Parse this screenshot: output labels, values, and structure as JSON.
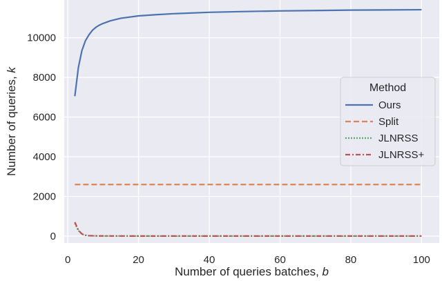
{
  "chart_data": {
    "type": "line",
    "xlabel": "Number of queries batches, b",
    "xlabel_prefix": "Number of queries batches, ",
    "xlabel_var": "b",
    "ylabel": "Number of queries, k",
    "ylabel_prefix": "Number of queries, ",
    "ylabel_var": "k",
    "xlim": [
      -1,
      105
    ],
    "ylim": [
      -350,
      11900
    ],
    "x_ticks": [
      0,
      20,
      40,
      60,
      80,
      100
    ],
    "y_ticks": [
      0,
      2000,
      4000,
      6000,
      8000,
      10000
    ],
    "grid": true,
    "legend": {
      "title": "Method",
      "position": "right"
    },
    "series": [
      {
        "name": "Ours",
        "color": "#4c72b0",
        "dash": "solid",
        "x": [
          2,
          3,
          4,
          5,
          6,
          7,
          8,
          9,
          10,
          12,
          15,
          20,
          25,
          30,
          40,
          50,
          60,
          70,
          80,
          90,
          100
        ],
        "y": [
          7050,
          8500,
          9350,
          9850,
          10150,
          10380,
          10530,
          10640,
          10720,
          10850,
          10980,
          11100,
          11160,
          11210,
          11280,
          11320,
          11350,
          11370,
          11390,
          11400,
          11410
        ]
      },
      {
        "name": "Split",
        "color": "#dd8452",
        "dash": "dashed",
        "x": [
          2,
          100
        ],
        "y": [
          2600,
          2600
        ]
      },
      {
        "name": "JLNRSS",
        "color": "#55a868",
        "dash": "dotted",
        "x": [
          2,
          3,
          4,
          5,
          6,
          8,
          10,
          20,
          40,
          60,
          80,
          100
        ],
        "y": [
          650,
          280,
          100,
          40,
          20,
          10,
          5,
          3,
          2,
          2,
          2,
          2
        ]
      },
      {
        "name": "JLNRSS+",
        "color": "#c44e52",
        "dash": "dashdot",
        "x": [
          2,
          3,
          4,
          5,
          6,
          8,
          10,
          20,
          40,
          60,
          80,
          100
        ],
        "y": [
          700,
          300,
          110,
          45,
          22,
          11,
          6,
          3,
          2,
          2,
          2,
          2
        ]
      }
    ]
  }
}
